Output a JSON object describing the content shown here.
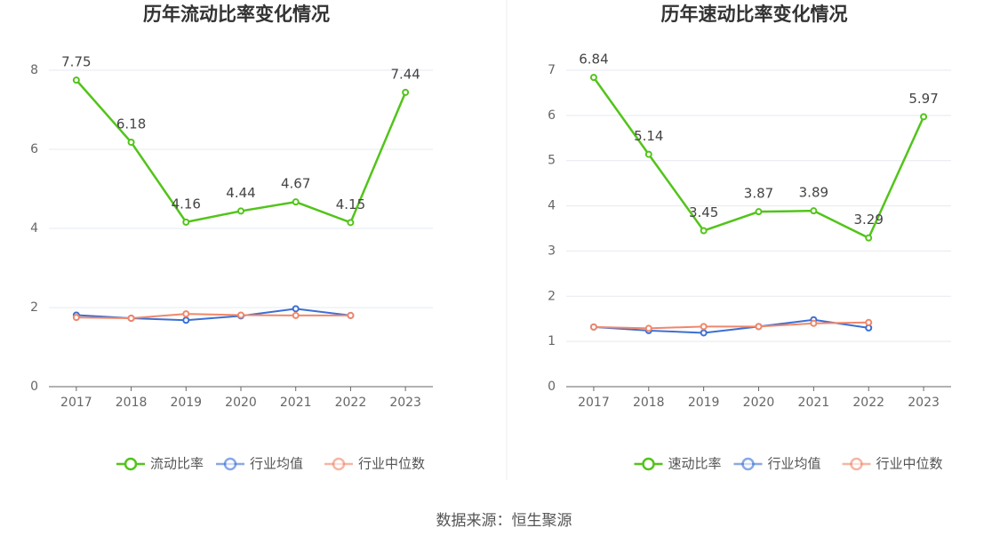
{
  "chart_data": [
    {
      "type": "line",
      "title": "历年流动比率变化情况",
      "categories": [
        "2017",
        "2018",
        "2019",
        "2020",
        "2021",
        "2022",
        "2023"
      ],
      "ylim": [
        0,
        8
      ],
      "yticks": [
        0,
        2,
        4,
        6,
        8
      ],
      "grid": true,
      "legend": "bottom",
      "series": [
        {
          "name": "流动比率",
          "color": "#52c41a",
          "data_labels": true,
          "values": [
            7.75,
            6.18,
            4.16,
            4.44,
            4.67,
            4.15,
            7.44
          ]
        },
        {
          "name": "行业均值",
          "color": "#3b6fd4",
          "values": [
            1.81,
            1.73,
            1.68,
            1.79,
            1.97,
            1.8,
            null
          ]
        },
        {
          "name": "行业中位数",
          "color": "#f0876a",
          "values": [
            1.75,
            1.73,
            1.84,
            1.81,
            1.8,
            1.8,
            null
          ]
        }
      ]
    },
    {
      "type": "line",
      "title": "历年速动比率变化情况",
      "categories": [
        "2017",
        "2018",
        "2019",
        "2020",
        "2021",
        "2022",
        "2023"
      ],
      "ylim": [
        0,
        7
      ],
      "yticks": [
        0,
        1,
        2,
        3,
        4,
        5,
        6,
        7
      ],
      "grid": true,
      "legend": "bottom",
      "series": [
        {
          "name": "速动比率",
          "color": "#52c41a",
          "data_labels": true,
          "values": [
            6.84,
            5.14,
            3.45,
            3.87,
            3.89,
            3.29,
            5.97
          ]
        },
        {
          "name": "行业均值",
          "color": "#3b6fd4",
          "values": [
            1.32,
            1.24,
            1.19,
            1.33,
            1.48,
            1.3,
            null
          ]
        },
        {
          "name": "行业中位数",
          "color": "#f0876a",
          "values": [
            1.32,
            1.29,
            1.33,
            1.33,
            1.4,
            1.42,
            null
          ]
        }
      ]
    }
  ],
  "source": "数据来源：恒生聚源"
}
